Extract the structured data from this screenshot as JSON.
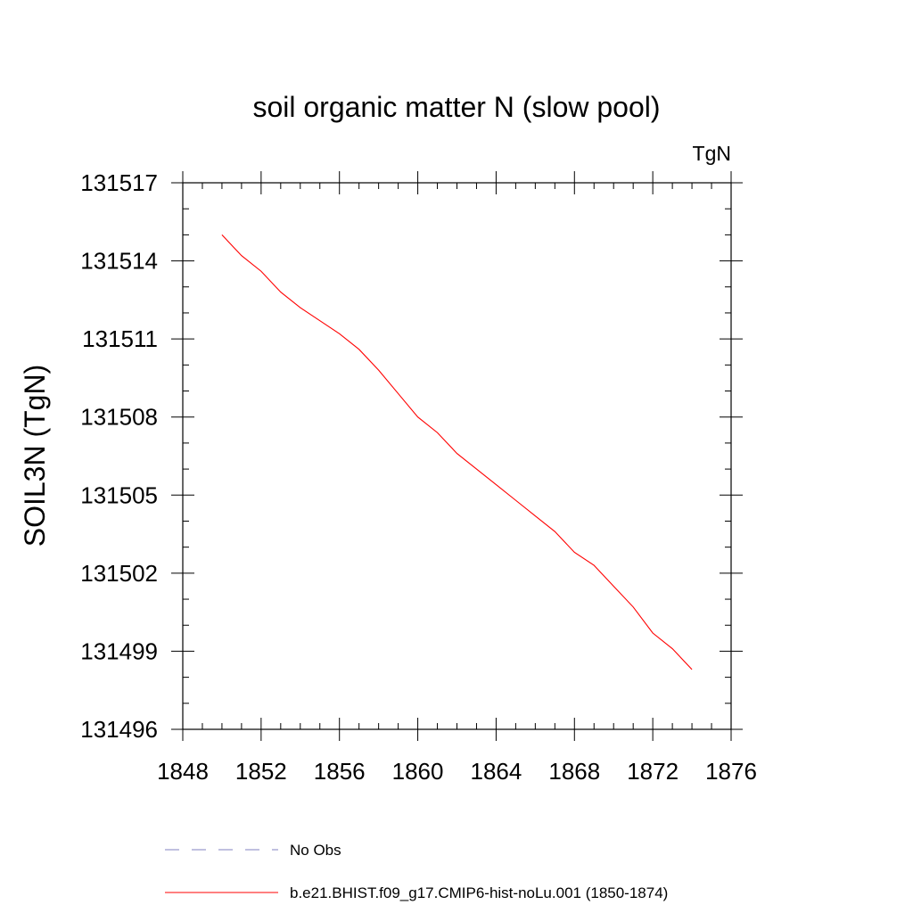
{
  "chart_data": {
    "type": "line",
    "title": "soil organic matter N (slow pool)",
    "units": "TgN",
    "xlabel": "",
    "ylabel": "SOIL3N  (TgN)",
    "xlim": [
      1848,
      1876
    ],
    "ylim": [
      131496,
      131517
    ],
    "xticks": [
      1848,
      1852,
      1856,
      1860,
      1864,
      1868,
      1872,
      1876
    ],
    "yticks": [
      131496,
      131499,
      131502,
      131505,
      131508,
      131511,
      131514,
      131517
    ],
    "x_minor_step": 1,
    "y_minor_step": 1,
    "grid": false,
    "legend_position": "bottom",
    "series": [
      {
        "name": "No Obs",
        "style": "dashed",
        "color": "#8080c0",
        "x": [],
        "y": []
      },
      {
        "name": "b.e21.BHIST.f09_g17.CMIP6-hist-noLu.001 (1850-1874)",
        "style": "solid",
        "color": "#ff0000",
        "x": [
          1850,
          1851,
          1852,
          1853,
          1854,
          1855,
          1856,
          1857,
          1858,
          1859,
          1860,
          1861,
          1862,
          1863,
          1864,
          1865,
          1866,
          1867,
          1868,
          1869,
          1870,
          1871,
          1872,
          1873,
          1874
        ],
        "y": [
          131515.0,
          131514.2,
          131513.6,
          131512.8,
          131512.2,
          131511.7,
          131511.2,
          131510.6,
          131509.8,
          131508.9,
          131508.0,
          131507.4,
          131506.6,
          131506.0,
          131505.4,
          131504.8,
          131504.2,
          131503.6,
          131502.8,
          131502.3,
          131501.5,
          131500.7,
          131499.7,
          131499.1,
          131498.3
        ]
      }
    ]
  }
}
